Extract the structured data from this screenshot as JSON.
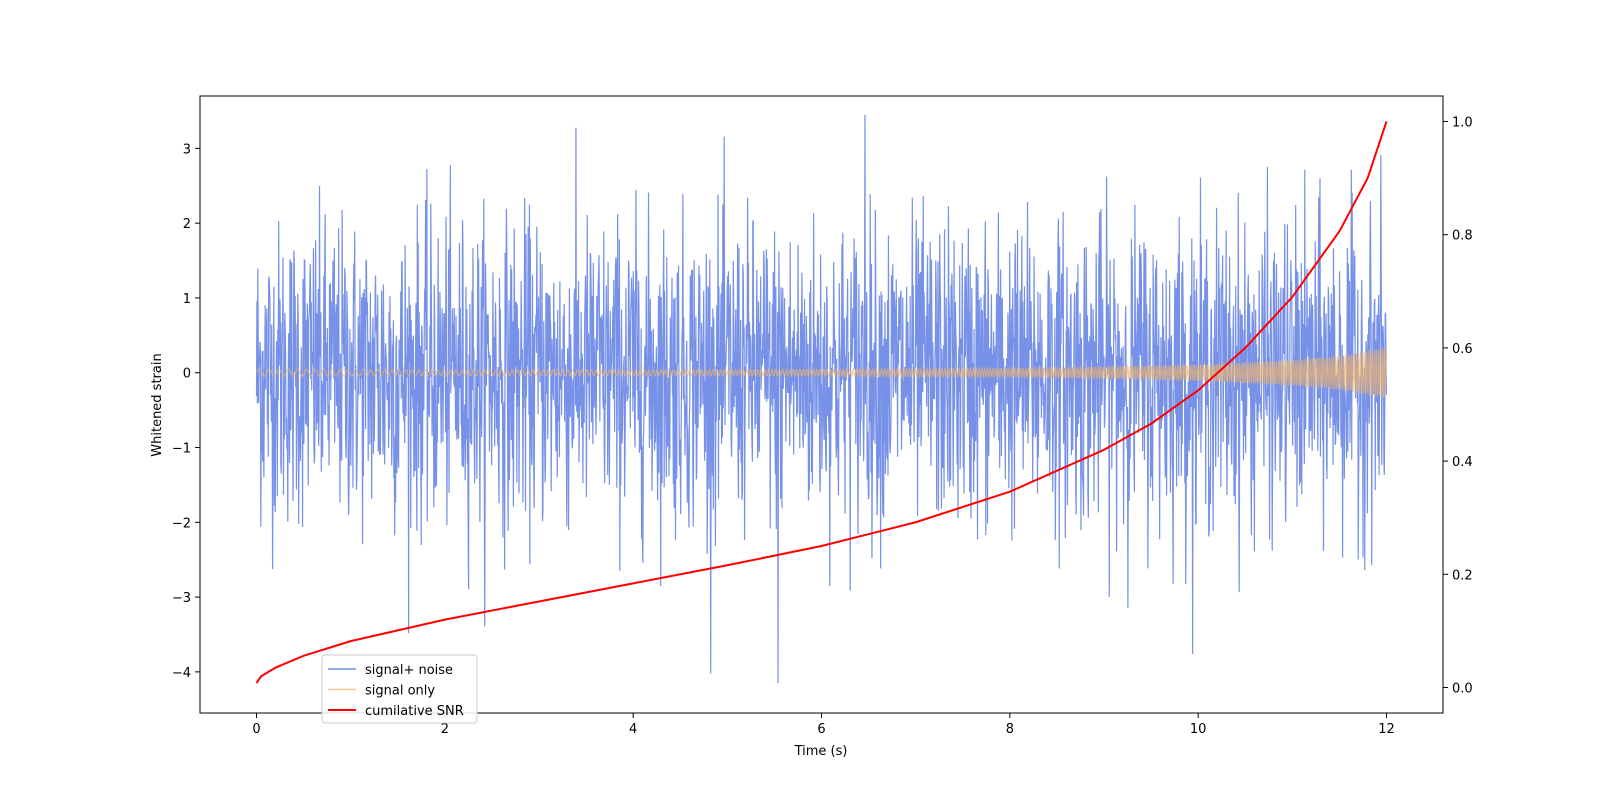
{
  "chart_data": {
    "type": "line",
    "xlabel": "Time (s)",
    "ylabel": "Whitened strain",
    "y2label": "",
    "xlim": [
      -0.6,
      12.6
    ],
    "ylim": [
      -4.55,
      3.7
    ],
    "y2lim": [
      -0.045,
      1.045
    ],
    "xticks": [
      0,
      2,
      4,
      6,
      8,
      10,
      12
    ],
    "yticks": [
      -4,
      -3,
      -2,
      -1,
      0,
      1,
      2,
      3
    ],
    "y2ticks": [
      0.0,
      0.2,
      0.4,
      0.6,
      0.8,
      1.0
    ],
    "y2tick_labels": [
      "0.0",
      "0.2",
      "0.4",
      "0.6",
      "0.8",
      "1.0"
    ],
    "grid": false,
    "legend_position": "lower-left",
    "series": [
      {
        "name": "signal+ noise",
        "color": "#6f8be6",
        "axis": "left",
        "x_range": [
          0,
          12
        ],
        "noise_std": 1.0,
        "notable_min": -4.15,
        "notable_max": 3.45
      },
      {
        "name": "signal only",
        "color": "#f2b66a",
        "axis": "left",
        "x_range": [
          0,
          12
        ],
        "envelope": [
          {
            "x": 0,
            "amp": 0.05
          },
          {
            "x": 2,
            "amp": 0.04
          },
          {
            "x": 4,
            "amp": 0.04
          },
          {
            "x": 6,
            "amp": 0.045
          },
          {
            "x": 8,
            "amp": 0.06
          },
          {
            "x": 9,
            "amp": 0.08
          },
          {
            "x": 10,
            "amp": 0.11
          },
          {
            "x": 11,
            "amp": 0.17
          },
          {
            "x": 11.5,
            "amp": 0.23
          },
          {
            "x": 12,
            "amp": 0.35
          }
        ]
      },
      {
        "name": "cumilative SNR",
        "color": "#ff0000",
        "axis": "right",
        "points": [
          {
            "x": 0.0,
            "y": 0.008
          },
          {
            "x": 0.05,
            "y": 0.02
          },
          {
            "x": 0.2,
            "y": 0.035
          },
          {
            "x": 0.5,
            "y": 0.056
          },
          {
            "x": 1.0,
            "y": 0.082
          },
          {
            "x": 2.0,
            "y": 0.12
          },
          {
            "x": 3.0,
            "y": 0.152
          },
          {
            "x": 4.0,
            "y": 0.184
          },
          {
            "x": 5.0,
            "y": 0.216
          },
          {
            "x": 6.0,
            "y": 0.25
          },
          {
            "x": 7.0,
            "y": 0.292
          },
          {
            "x": 8.0,
            "y": 0.346
          },
          {
            "x": 9.0,
            "y": 0.42
          },
          {
            "x": 9.5,
            "y": 0.466
          },
          {
            "x": 10.0,
            "y": 0.525
          },
          {
            "x": 10.5,
            "y": 0.6
          },
          {
            "x": 11.0,
            "y": 0.69
          },
          {
            "x": 11.5,
            "y": 0.806
          },
          {
            "x": 11.8,
            "y": 0.9
          },
          {
            "x": 12.0,
            "y": 1.0
          }
        ]
      }
    ]
  }
}
